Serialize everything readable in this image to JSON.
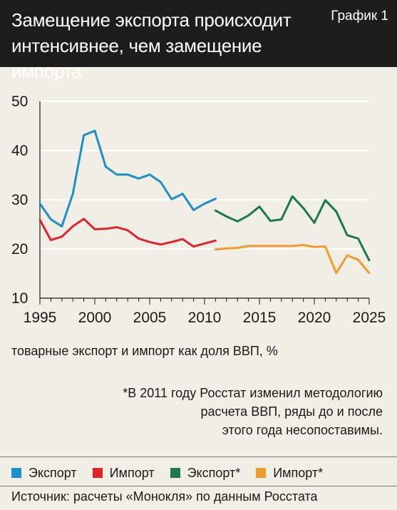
{
  "header": {
    "title": "Замещение экспорта происходит интенсивнее, чем замещение импорта",
    "badge": "График 1"
  },
  "chart_data": {
    "type": "line",
    "ylabel": "товарные экспорт и импорт как доля ВВП, %",
    "ylim": [
      10,
      50
    ],
    "yticks": [
      10,
      20,
      30,
      40,
      50
    ],
    "xlim": [
      1995,
      2025
    ],
    "xticks": [
      1995,
      2000,
      2005,
      2010,
      2015,
      2020,
      2025
    ],
    "grid": "horizontal",
    "series": [
      {
        "name": "Экспорт",
        "color": "#1b8fc6",
        "x": [
          1995,
          1996,
          1997,
          1998,
          1999,
          2000,
          2001,
          2002,
          2003,
          2004,
          2005,
          2006,
          2007,
          2008,
          2009,
          2010,
          2011
        ],
        "values": [
          29.2,
          26.0,
          24.6,
          31.2,
          43.1,
          44.0,
          36.7,
          35.1,
          35.1,
          34.3,
          35.1,
          33.6,
          30.1,
          31.2,
          27.9,
          29.2,
          30.2
        ]
      },
      {
        "name": "Импорт",
        "color": "#e0232b",
        "x": [
          1995,
          1996,
          1997,
          1998,
          1999,
          2000,
          2001,
          2002,
          2003,
          2004,
          2005,
          2006,
          2007,
          2008,
          2009,
          2010,
          2011
        ],
        "values": [
          25.9,
          21.8,
          22.5,
          24.6,
          26.1,
          24.0,
          24.1,
          24.4,
          23.8,
          22.1,
          21.4,
          20.9,
          21.4,
          22.0,
          20.5,
          21.1,
          21.7
        ]
      },
      {
        "name": "Экспорт*",
        "color": "#1a7a4e",
        "x": [
          2011,
          2012,
          2013,
          2014,
          2015,
          2016,
          2017,
          2018,
          2019,
          2020,
          2021,
          2022,
          2023,
          2024,
          2025
        ],
        "values": [
          27.8,
          26.6,
          25.6,
          26.8,
          28.6,
          25.7,
          26.0,
          30.7,
          28.3,
          25.3,
          29.9,
          27.6,
          22.8,
          22.1,
          17.7
        ]
      },
      {
        "name": "Импорт*",
        "color": "#f39a2d",
        "x": [
          2011,
          2012,
          2013,
          2014,
          2015,
          2016,
          2017,
          2018,
          2019,
          2020,
          2021,
          2022,
          2023,
          2024,
          2025
        ],
        "values": [
          19.9,
          20.1,
          20.2,
          20.6,
          20.6,
          20.6,
          20.6,
          20.6,
          20.8,
          20.4,
          20.5,
          15.1,
          18.7,
          17.8,
          15.1
        ]
      }
    ],
    "note": "*В 2011 году Росстат изменил методологию\nрасчета ВВП, ряды до и после\nэтого года несопоставимы."
  },
  "source": "Источник: расчеты «Монокля» по данным Росстата"
}
